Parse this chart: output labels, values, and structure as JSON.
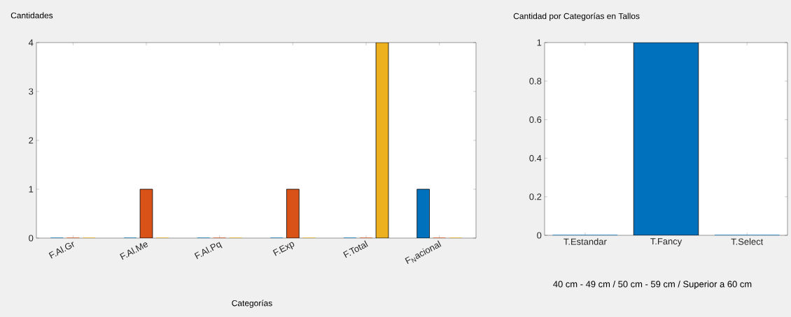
{
  "chart_data": [
    {
      "type": "bar",
      "title": "Cantidades",
      "xlabel": "Categorías",
      "categories": [
        "F.Al.Gr",
        "F.Al.Me",
        "F.Al.Pq",
        "F.Exp",
        "F.Total",
        "F$_{N}$acional"
      ],
      "series": [
        {
          "color": "#0072bd",
          "values": [
            0,
            0,
            0,
            0,
            0,
            1
          ]
        },
        {
          "color": "#d95319",
          "values": [
            0,
            1,
            0,
            1,
            0,
            0
          ]
        },
        {
          "color": "#edb120",
          "values": [
            0,
            0,
            0,
            0,
            4,
            0
          ]
        }
      ],
      "ylim": [
        0,
        4
      ],
      "yticks": [
        0,
        1,
        2,
        3,
        4
      ]
    },
    {
      "type": "bar",
      "title": "Cantidad por Categorías en Tallos",
      "categories": [
        "T.Estandar",
        "T.Fancy",
        "T.Select"
      ],
      "values": [
        0,
        1,
        0
      ],
      "color": "#0072bd",
      "ylim": [
        0,
        1
      ],
      "yticks": [
        0,
        0.2,
        0.4,
        0.6,
        0.8,
        1
      ],
      "annotations": [
        "40 cm - 49 cm /   50 cm - 59 cm / Superior a 60 cm"
      ]
    }
  ]
}
